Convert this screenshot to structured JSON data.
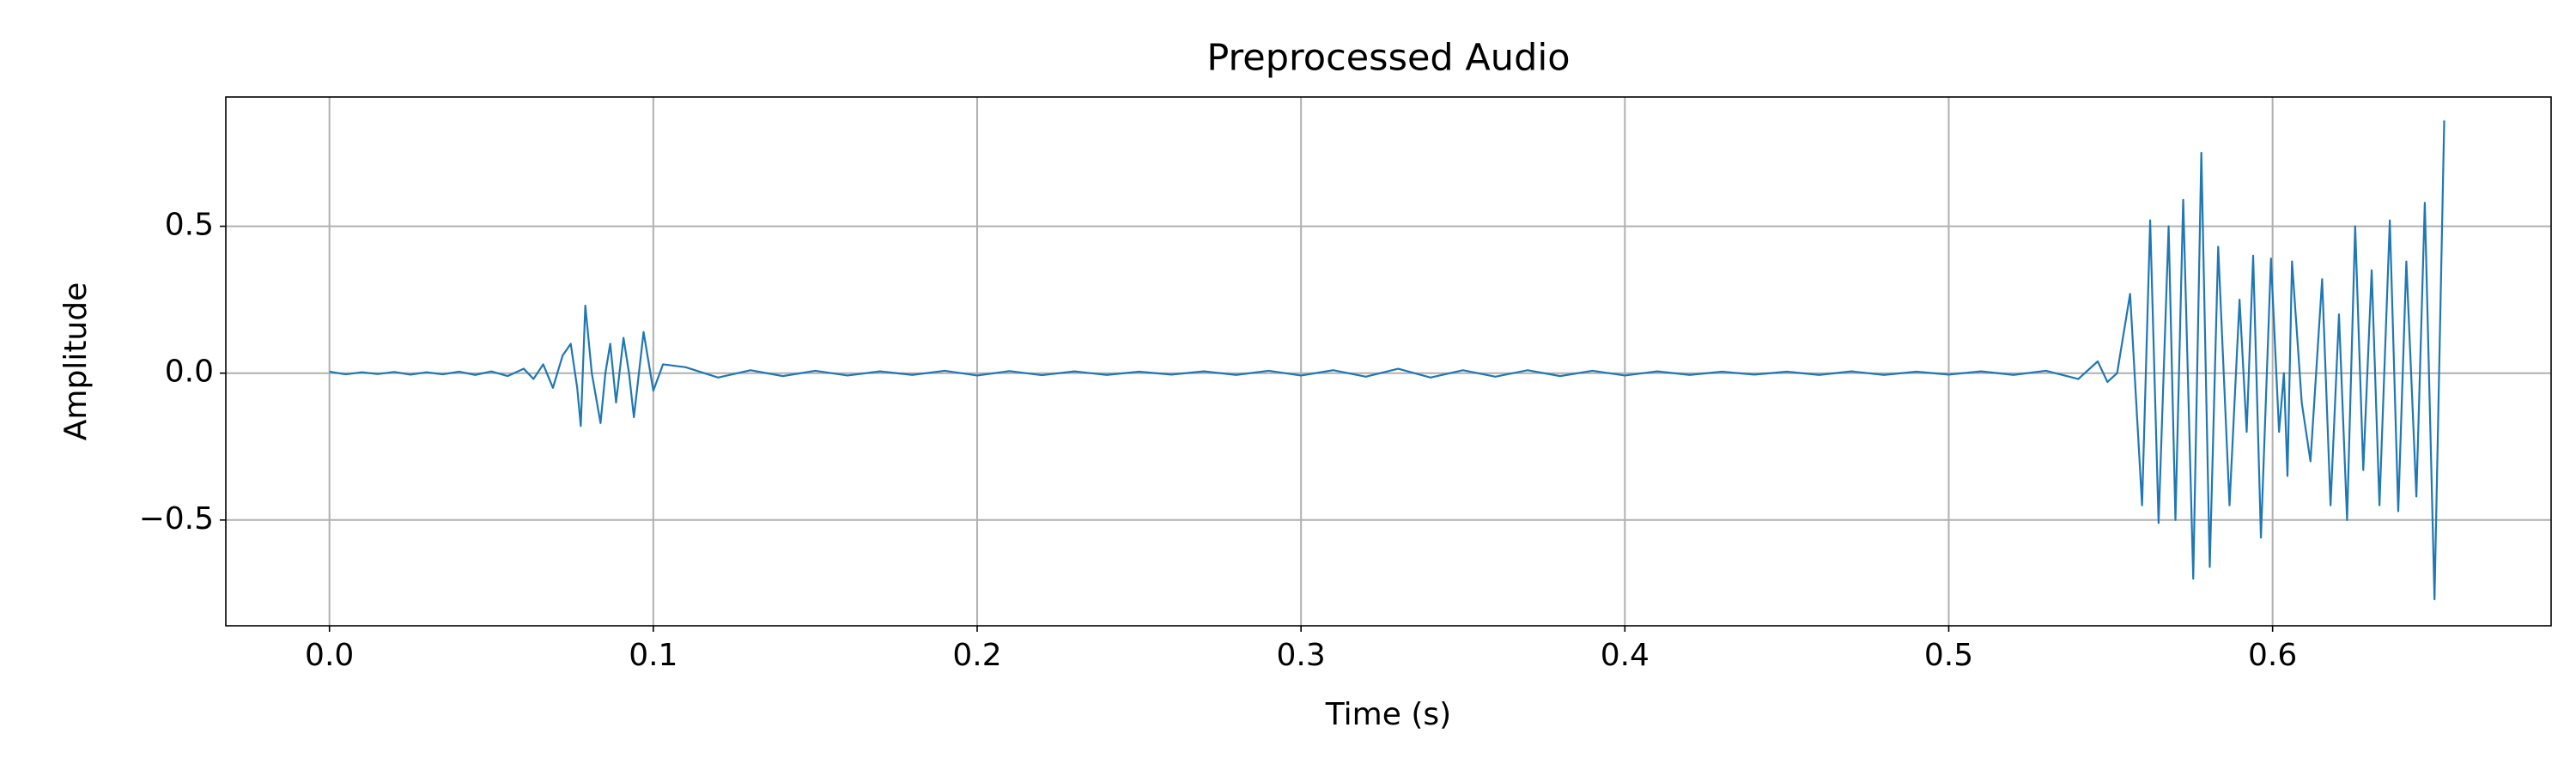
{
  "chart_data": {
    "type": "line",
    "title": "Preprocessed Audio",
    "xlabel": "Time (s)",
    "ylabel": "Amplitude",
    "x": [
      0,
      0.005,
      0.01,
      0.015,
      0.02,
      0.025,
      0.03,
      0.035,
      0.04,
      0.045,
      0.05,
      0.055,
      0.06,
      0.063,
      0.066,
      0.069,
      0.072,
      0.0745,
      0.0765,
      0.0776,
      0.079,
      0.081,
      0.0837,
      0.0852,
      0.0867,
      0.0885,
      0.0908,
      0.0925,
      0.094,
      0.097,
      0.1,
      0.103,
      0.11,
      0.12,
      0.13,
      0.14,
      0.15,
      0.16,
      0.17,
      0.18,
      0.19,
      0.2,
      0.21,
      0.22,
      0.23,
      0.24,
      0.25,
      0.26,
      0.27,
      0.28,
      0.29,
      0.3,
      0.31,
      0.32,
      0.33,
      0.34,
      0.35,
      0.36,
      0.37,
      0.38,
      0.39,
      0.4,
      0.41,
      0.42,
      0.43,
      0.44,
      0.45,
      0.46,
      0.47,
      0.48,
      0.49,
      0.5,
      0.51,
      0.52,
      0.53,
      0.54,
      0.546,
      0.549,
      0.552,
      0.556,
      0.5597,
      0.5622,
      0.5648,
      0.5679,
      0.57,
      0.5724,
      0.5755,
      0.578,
      0.5806,
      0.5832,
      0.5867,
      0.5898,
      0.592,
      0.594,
      0.5964,
      0.5995,
      0.602,
      0.6035,
      0.6046,
      0.606,
      0.609,
      0.6117,
      0.6153,
      0.6179,
      0.6205,
      0.623,
      0.6255,
      0.628,
      0.6306,
      0.633,
      0.6362,
      0.6388,
      0.6413,
      0.6444,
      0.647,
      0.65,
      0.653
    ],
    "series": [
      {
        "color": "#1f77b4",
        "values": [
          0.005,
          -0.004,
          0.003,
          -0.003,
          0.004,
          -0.005,
          0.003,
          -0.004,
          0.005,
          -0.006,
          0.006,
          -0.01,
          0.015,
          -0.02,
          0.03,
          -0.05,
          0.06,
          0.1,
          -0.05,
          -0.18,
          0.23,
          0.0,
          -0.17,
          0.0,
          0.1,
          -0.1,
          0.12,
          0.0,
          -0.15,
          0.14,
          -0.06,
          0.03,
          0.02,
          -0.015,
          0.01,
          -0.01,
          0.008,
          -0.008,
          0.006,
          -0.006,
          0.008,
          -0.008,
          0.007,
          -0.007,
          0.006,
          -0.006,
          0.005,
          -0.005,
          0.006,
          -0.006,
          0.008,
          -0.008,
          0.01,
          -0.012,
          0.015,
          -0.015,
          0.01,
          -0.012,
          0.01,
          -0.01,
          0.008,
          -0.008,
          0.006,
          -0.006,
          0.005,
          -0.005,
          0.005,
          -0.006,
          0.006,
          -0.006,
          0.005,
          -0.005,
          0.006,
          -0.006,
          0.008,
          -0.02,
          0.04,
          -0.03,
          0.0,
          0.27,
          -0.45,
          0.52,
          -0.51,
          0.5,
          -0.5,
          0.59,
          -0.7,
          0.75,
          -0.66,
          0.43,
          -0.45,
          0.25,
          -0.2,
          0.4,
          -0.56,
          0.39,
          -0.2,
          0.0,
          -0.35,
          0.38,
          -0.1,
          -0.3,
          0.32,
          -0.45,
          0.2,
          -0.5,
          0.5,
          -0.33,
          0.35,
          -0.45,
          0.52,
          -0.47,
          0.38,
          -0.42,
          0.58,
          -0.77,
          0.86
        ]
      }
    ],
    "xlim": [
      -0.032,
      0.686
    ],
    "ylim": [
      -0.86,
      0.94
    ],
    "xticks": [
      {
        "value": 0,
        "label": "0.0"
      },
      0.1,
      0.2,
      0.3,
      0.4,
      0.5,
      0.6
    ],
    "yticks": [
      {
        "value": -0.5,
        "label": "−0.5"
      },
      {
        "value": 0,
        "label": "0.0"
      },
      0.5
    ],
    "grid": true
  }
}
